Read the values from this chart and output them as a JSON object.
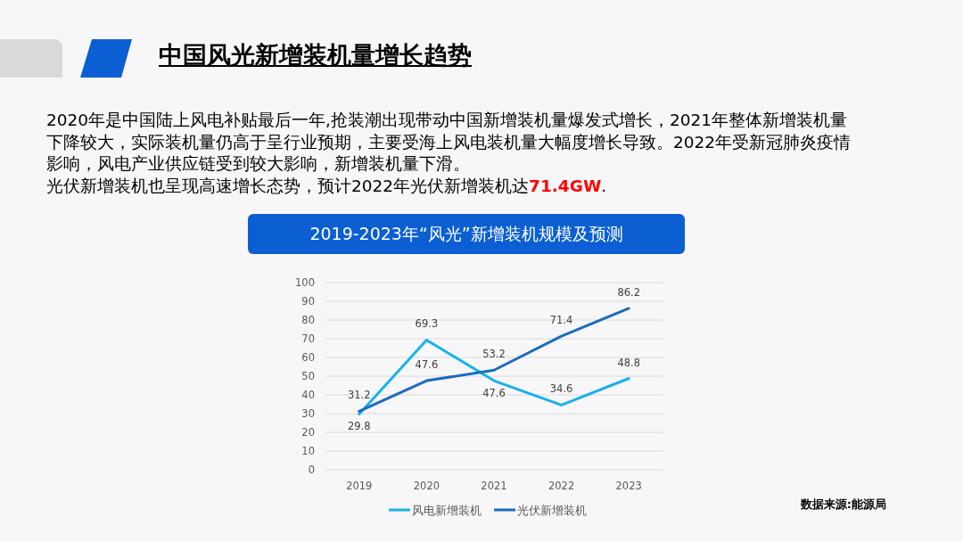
{
  "chart_data": {
    "type": "line",
    "title": "中国风光新增装机量增长趋势",
    "subtitle": "2019-2023年“风光”新增装机规模及预测",
    "annotations": [
      "2020年是中国陆上风电补贴最后一年,抢装潮出现带动中国新增装机量爆发式增长，2021年整体新增装机量",
      "下降较大，实际装机量仍高于呈行业预期，主要受海上风电装机量大幅度增长导致。2022年受新冠肺炎疫情",
      "影响，风电产业供应链受到较大影响，新增装机量下滑。",
      "光伏新增装机也呈现高速增长态势，预计2022年光伏新增装机达",
      "71.4GW",
      ".",
      "数据来源:能源局"
    ],
    "categories": [
      "2019",
      "2020",
      "2021",
      "2022",
      "2023"
    ],
    "series": [
      {
        "name": "风电新增装机",
        "color": "#19b0ee",
        "values": [
          29.8,
          69.3,
          47.6,
          34.6,
          48.8
        ]
      },
      {
        "name": "光伏新增装机",
        "color": "#1a6cbd",
        "values": [
          31.2,
          47.6,
          53.2,
          71.4,
          86.2
        ]
      }
    ],
    "ylim": [
      0,
      100
    ],
    "yticks": [
      0,
      10,
      20,
      30,
      40,
      50,
      60,
      70,
      80,
      90,
      100
    ],
    "grid": "y",
    "legend": "bottom",
    "data_labels": true,
    "marker": "none",
    "line_style": "solid"
  }
}
